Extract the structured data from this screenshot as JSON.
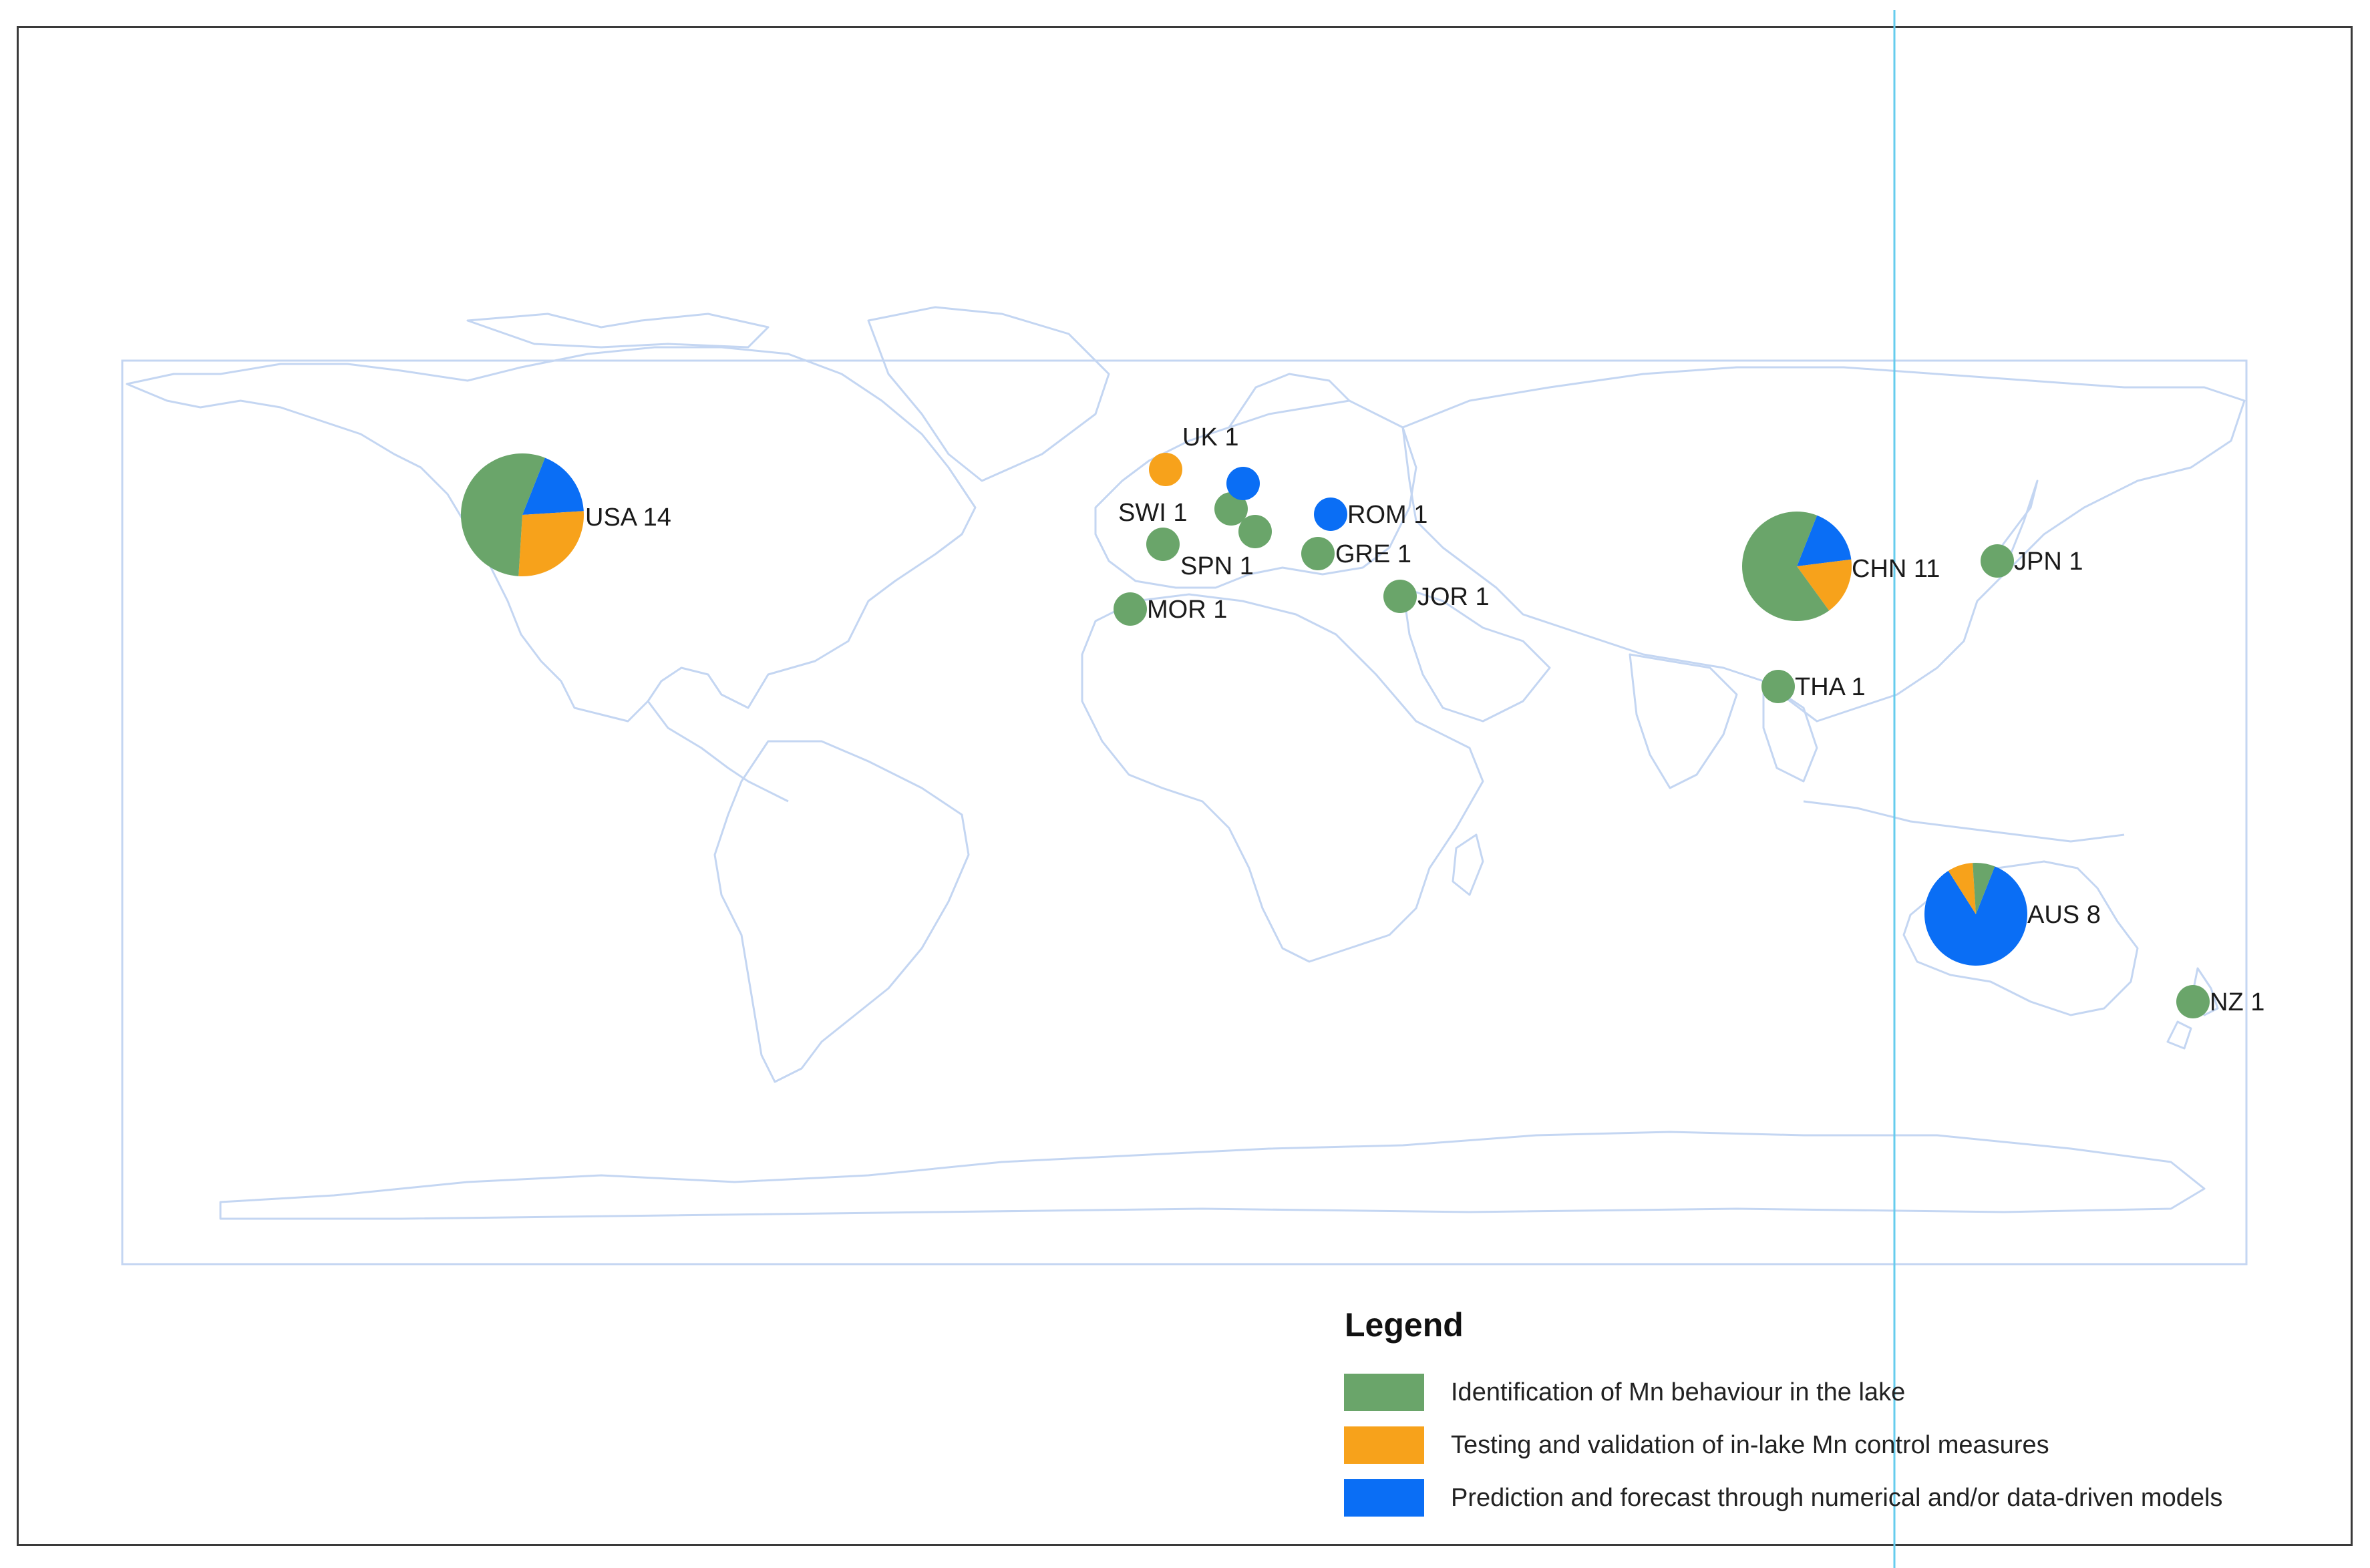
{
  "colors": {
    "identification": "#6aa56a",
    "testing": "#f7a21b",
    "prediction": "#0a6ef5",
    "land_outline": "#c4d6f2"
  },
  "legend": {
    "title": "Legend",
    "items": [
      {
        "label": "Identification of Mn behaviour in the lake",
        "color_key": "identification"
      },
      {
        "label": "Testing and validation of in-lake Mn control measures",
        "color_key": "testing"
      },
      {
        "label": "Prediction and forecast through numerical and/or data-driven models",
        "color_key": "prediction"
      }
    ]
  },
  "countries": [
    {
      "code": "USA",
      "count": "14",
      "label": "USA  14",
      "shares": [
        0.55,
        0.27,
        0.18
      ]
    },
    {
      "code": "UK",
      "count": "1",
      "label": "UK  1",
      "shares": [
        0,
        1,
        0
      ]
    },
    {
      "code": "SWI",
      "count": "1",
      "label": "SWI  1",
      "shares": [
        1,
        0,
        0
      ]
    },
    {
      "code": "SPN",
      "count": "1",
      "label": "SPN  1",
      "shares": [
        1,
        0,
        0
      ]
    },
    {
      "code": "ROM",
      "count": "1",
      "label": "ROM  1",
      "shares": [
        0,
        0,
        1
      ]
    },
    {
      "code": "GRE",
      "count": "1",
      "label": "GRE  1",
      "shares": [
        1,
        0,
        0
      ]
    },
    {
      "code": "JOR",
      "count": "1",
      "label": "JOR  1",
      "shares": [
        1,
        0,
        0
      ]
    },
    {
      "code": "MOR",
      "count": "1",
      "label": "MOR  1",
      "shares": [
        1,
        0,
        0
      ]
    },
    {
      "code": "CHN",
      "count": "11",
      "label": "CHN  11",
      "shares": [
        0.66,
        0.17,
        0.17
      ]
    },
    {
      "code": "JPN",
      "count": "1",
      "label": "JPN  1",
      "shares": [
        1,
        0,
        0
      ]
    },
    {
      "code": "THA",
      "count": "1",
      "label": "THA  1",
      "shares": [
        1,
        0,
        0
      ]
    },
    {
      "code": "AUS",
      "count": "8",
      "label": "AUS  8",
      "shares": [
        0.07,
        0.08,
        0.85
      ]
    },
    {
      "code": "NZ",
      "count": "1",
      "label": "NZ  1",
      "shares": [
        1,
        0,
        0
      ]
    }
  ],
  "unlabeled_markers": [
    {
      "category": "prediction"
    },
    {
      "category": "identification"
    }
  ]
}
